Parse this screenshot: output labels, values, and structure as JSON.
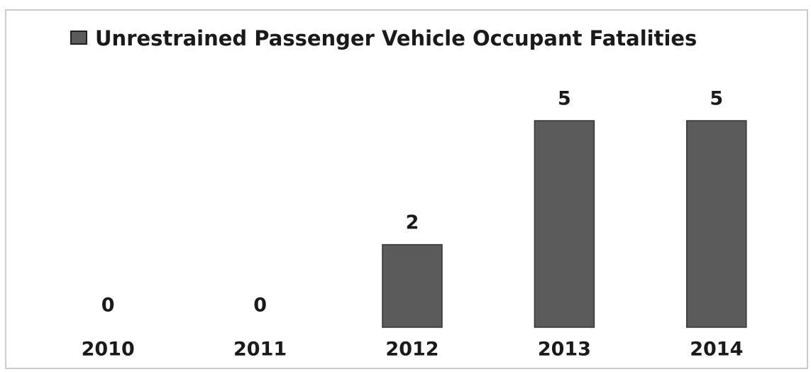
{
  "chart_data": {
    "type": "bar",
    "categories": [
      "2010",
      "2011",
      "2012",
      "2013",
      "2014"
    ],
    "series": [
      {
        "name": "Unrestrained Passenger Vehicle Occupant Fatalities",
        "color": "#5b5b5b",
        "values": [
          0,
          0,
          2,
          5,
          5
        ]
      }
    ],
    "legend": "top"
  }
}
